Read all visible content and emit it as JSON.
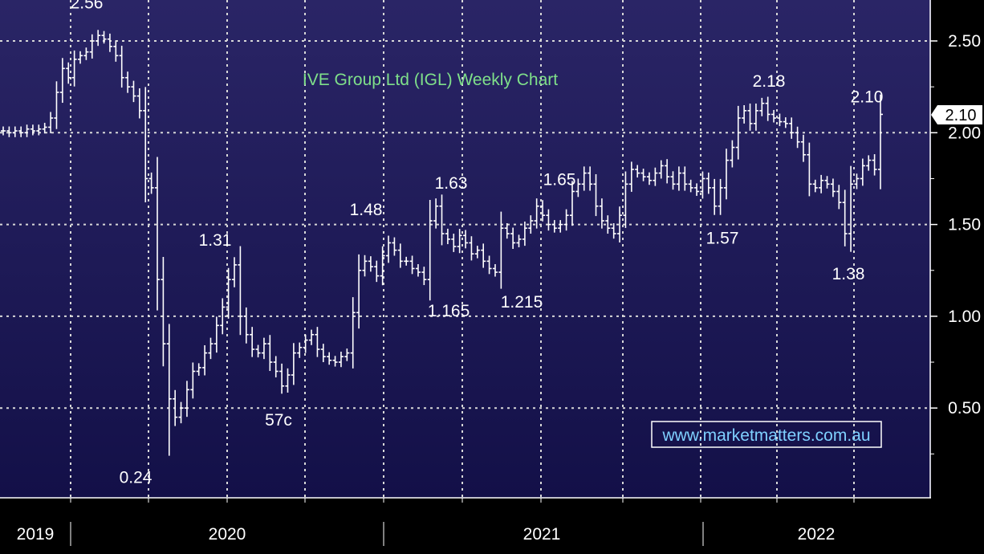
{
  "chart_data": {
    "type": "ohlc",
    "title": "IVE Group Ltd (IGL) Weekly Chart",
    "watermark": "www.marketmatters.com.au",
    "y_ticks": [
      "2.50",
      "2.00",
      "1.50",
      "1.00",
      "0.50"
    ],
    "y_tick_values": [
      2.5,
      2.0,
      1.5,
      1.0,
      0.5
    ],
    "ylim": [
      0.05,
      2.72
    ],
    "x_labels": [
      "2019",
      "2020",
      "2021",
      "2022"
    ],
    "last_value": "2.10",
    "annotations": [
      {
        "text": "2.56",
        "value": 2.56
      },
      {
        "text": "0.24",
        "value": 0.24
      },
      {
        "text": "1.31",
        "value": 1.31
      },
      {
        "text": "57c",
        "value": 0.57
      },
      {
        "text": "1.48",
        "value": 1.48
      },
      {
        "text": "1.165",
        "value": 1.165
      },
      {
        "text": "1.63",
        "value": 1.63
      },
      {
        "text": "1.215",
        "value": 1.215
      },
      {
        "text": "1.65",
        "value": 1.65
      },
      {
        "text": "1.57",
        "value": 1.57
      },
      {
        "text": "2.18",
        "value": 2.18
      },
      {
        "text": "1.38",
        "value": 1.38
      },
      {
        "text": "2.10",
        "value": 2.1
      }
    ],
    "weekly_closes": [
      2.01,
      2.0,
      2.01,
      2.0,
      2.02,
      2.01,
      2.02,
      2.03,
      2.08,
      2.22,
      2.35,
      2.3,
      2.4,
      2.42,
      2.44,
      2.5,
      2.53,
      2.51,
      2.47,
      2.42,
      2.3,
      2.25,
      2.2,
      2.12,
      1.75,
      1.7,
      1.2,
      0.85,
      0.55,
      0.45,
      0.5,
      0.6,
      0.7,
      0.72,
      0.8,
      0.85,
      0.95,
      1.05,
      1.2,
      1.28,
      1.0,
      0.9,
      0.82,
      0.8,
      0.85,
      0.75,
      0.7,
      0.62,
      0.68,
      0.8,
      0.83,
      0.87,
      0.9,
      0.82,
      0.78,
      0.76,
      0.75,
      0.78,
      0.8,
      1.02,
      1.25,
      1.3,
      1.27,
      1.22,
      1.33,
      1.4,
      1.36,
      1.3,
      1.3,
      1.26,
      1.24,
      1.2,
      1.52,
      1.6,
      1.45,
      1.42,
      1.38,
      1.44,
      1.4,
      1.34,
      1.36,
      1.3,
      1.26,
      1.24,
      1.48,
      1.45,
      1.4,
      1.42,
      1.48,
      1.52,
      1.6,
      1.55,
      1.5,
      1.48,
      1.5,
      1.55,
      1.68,
      1.72,
      1.78,
      1.72,
      1.6,
      1.52,
      1.48,
      1.45,
      1.55,
      1.72,
      1.8,
      1.78,
      1.76,
      1.74,
      1.78,
      1.82,
      1.76,
      1.72,
      1.78,
      1.72,
      1.7,
      1.68,
      1.75,
      1.7,
      1.6,
      1.7,
      1.85,
      1.92,
      2.08,
      2.12,
      2.05,
      2.12,
      2.16,
      2.1,
      2.08,
      2.06,
      2.05,
      2.0,
      1.95,
      1.88,
      1.72,
      1.7,
      1.74,
      1.72,
      1.68,
      1.62,
      1.45,
      1.72,
      1.75,
      1.82,
      1.85,
      1.8,
      2.1
    ]
  }
}
